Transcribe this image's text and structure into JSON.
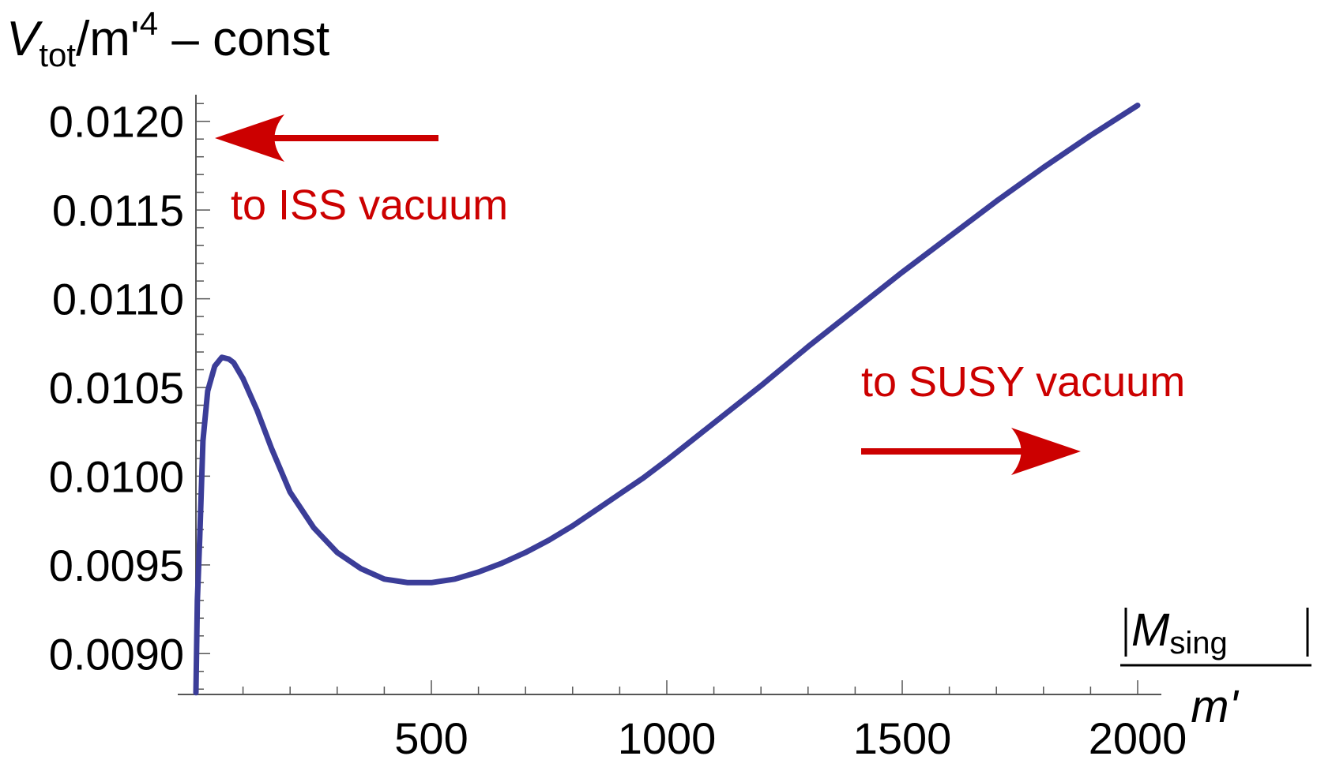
{
  "chart_data": {
    "type": "line",
    "title": "",
    "ylabel": {
      "main": "V",
      "sub": "tot",
      "mid": "/m'",
      "sup": "4",
      "tail": " – const"
    },
    "xlabel": {
      "numerator_main": "M",
      "numerator_sub": "sing",
      "denominator": "m'"
    },
    "xlim": [
      0,
      2050
    ],
    "ylim": [
      0.00877,
      0.01215
    ],
    "x_ticks": [
      {
        "value": 500,
        "label": "500"
      },
      {
        "value": 1000,
        "label": "1000"
      },
      {
        "value": 1500,
        "label": "1500"
      },
      {
        "value": 2000,
        "label": "2000"
      }
    ],
    "y_ticks": [
      {
        "value": 0.009,
        "label": "0.0090"
      },
      {
        "value": 0.0095,
        "label": "0.0095"
      },
      {
        "value": 0.01,
        "label": "0.0100"
      },
      {
        "value": 0.0105,
        "label": "0.0105"
      },
      {
        "value": 0.011,
        "label": "0.0110"
      },
      {
        "value": 0.0115,
        "label": "0.0115"
      },
      {
        "value": 0.012,
        "label": "0.0120"
      }
    ],
    "x_minor_step": 100,
    "y_minor_step": 0.0001,
    "series": [
      {
        "color": "#3b3d98",
        "x": [
          0,
          3,
          8,
          15,
          25,
          40,
          55,
          70,
          80,
          100,
          130,
          160,
          200,
          250,
          300,
          350,
          400,
          450,
          500,
          550,
          600,
          650,
          700,
          750,
          800,
          850,
          900,
          950,
          1000,
          1100,
          1200,
          1300,
          1400,
          1500,
          1600,
          1700,
          1800,
          1900,
          2000
        ],
        "y": [
          0.00878,
          0.0093,
          0.00965,
          0.0102,
          0.01048,
          0.01062,
          0.01067,
          0.01066,
          0.01064,
          0.01055,
          0.01037,
          0.01016,
          0.00991,
          0.00971,
          0.00957,
          0.00948,
          0.00942,
          0.0094,
          0.0094,
          0.00942,
          0.00946,
          0.00951,
          0.00957,
          0.00964,
          0.00972,
          0.00981,
          0.0099,
          0.00999,
          0.01009,
          0.0103,
          0.01051,
          0.01073,
          0.01094,
          0.01115,
          0.01135,
          0.01155,
          0.01174,
          0.01192,
          0.01209
        ]
      }
    ],
    "annotations": [
      {
        "text": "to ISS vacuum",
        "color": "#cc0000",
        "arrow": "left"
      },
      {
        "text": "to SUSY vacuum",
        "color": "#cc0000",
        "arrow": "right"
      }
    ],
    "grid": false,
    "legend": "none"
  }
}
